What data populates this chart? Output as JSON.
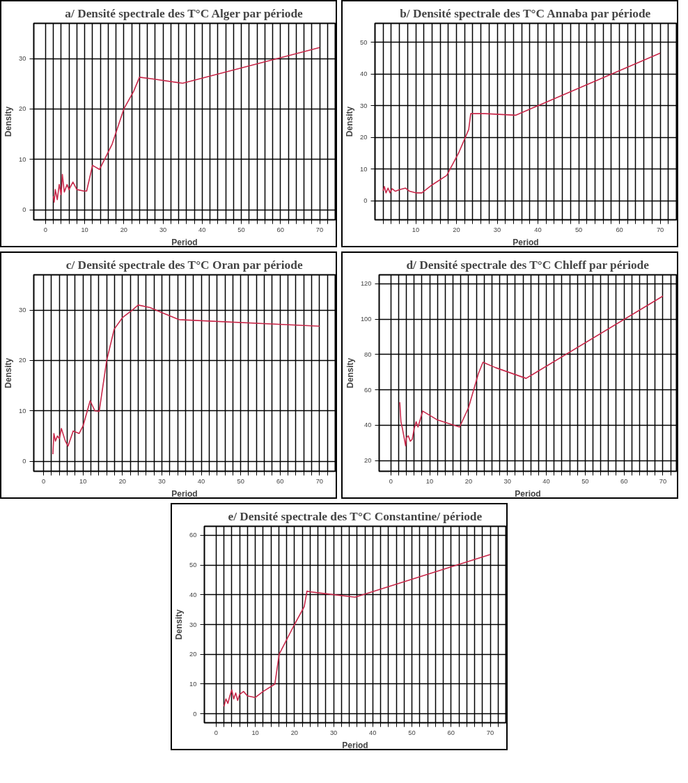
{
  "chart_data": [
    {
      "type": "line",
      "title": "a/ Densité spectrale des T°C Alger par période",
      "xlabel": "Period",
      "ylabel": "Density",
      "color": "#c8284a",
      "grid": true,
      "xlim": [
        -3,
        74
      ],
      "ylim": [
        -2,
        37
      ],
      "xticks": [
        0,
        {
          "value": 2,
          "label": null
        },
        {
          "value": 4,
          "label": null
        },
        {
          "value": 6,
          "label": null
        },
        {
          "value": 8,
          "label": null
        },
        10,
        {
          "value": 12,
          "label": null
        },
        {
          "value": 14,
          "label": null
        },
        {
          "value": 16,
          "label": null
        },
        {
          "value": 18,
          "label": null
        },
        20,
        {
          "value": 22,
          "label": null
        },
        {
          "value": 24,
          "label": null
        },
        {
          "value": 26,
          "label": null
        },
        {
          "value": 28,
          "label": null
        },
        30,
        {
          "value": 32,
          "label": null
        },
        {
          "value": 34,
          "label": null
        },
        {
          "value": 36,
          "label": null
        },
        {
          "value": 38,
          "label": null
        },
        40,
        {
          "value": 42,
          "label": null
        },
        {
          "value": 44,
          "label": null
        },
        {
          "value": 46,
          "label": null
        },
        {
          "value": 48,
          "label": null
        },
        50,
        {
          "value": 52,
          "label": null
        },
        {
          "value": 54,
          "label": null
        },
        {
          "value": 56,
          "label": null
        },
        {
          "value": 58,
          "label": null
        },
        60,
        {
          "value": 62,
          "label": null
        },
        {
          "value": 64,
          "label": null
        },
        {
          "value": 66,
          "label": null
        },
        {
          "value": 68,
          "label": null
        },
        70,
        {
          "value": 72,
          "label": null
        }
      ],
      "yticks": [
        0,
        10,
        20,
        30
      ],
      "x": [
        2.0,
        2.2,
        2.5,
        3.0,
        3.5,
        4.0,
        4.3,
        4.8,
        5.5,
        6.0,
        7.0,
        8.0,
        9.8,
        10.5,
        12.0,
        13.8,
        17.0,
        20.0,
        22.5,
        24.0,
        27.0,
        35.0,
        70.0
      ],
      "values": [
        2.7,
        1.5,
        4.0,
        2.0,
        5.0,
        3.0,
        7.0,
        3.5,
        5.0,
        4.0,
        5.5,
        4.0,
        3.7,
        3.7,
        8.8,
        8.0,
        13.0,
        20.0,
        23.5,
        26.3,
        26.0,
        25.1,
        32.2
      ]
    },
    {
      "type": "line",
      "title": "b/ Densité spectrale des T°C Annaba par période",
      "xlabel": "Period",
      "ylabel": "Density",
      "color": "#c8284a",
      "grid": true,
      "xlim": [
        0,
        74
      ],
      "ylim": [
        -6,
        56
      ],
      "xticks": [
        {
          "value": 2,
          "label": null
        },
        {
          "value": 4,
          "label": null
        },
        {
          "value": 6,
          "label": null
        },
        {
          "value": 8,
          "label": null
        },
        10,
        {
          "value": 12,
          "label": null
        },
        {
          "value": 14,
          "label": null
        },
        {
          "value": 16,
          "label": null
        },
        {
          "value": 18,
          "label": null
        },
        20,
        {
          "value": 22,
          "label": null
        },
        {
          "value": 24,
          "label": null
        },
        {
          "value": 26,
          "label": null
        },
        {
          "value": 28,
          "label": null
        },
        30,
        {
          "value": 32,
          "label": null
        },
        {
          "value": 34,
          "label": null
        },
        {
          "value": 36,
          "label": null
        },
        {
          "value": 38,
          "label": null
        },
        40,
        {
          "value": 42,
          "label": null
        },
        {
          "value": 44,
          "label": null
        },
        {
          "value": 46,
          "label": null
        },
        {
          "value": 48,
          "label": null
        },
        50,
        {
          "value": 52,
          "label": null
        },
        {
          "value": 54,
          "label": null
        },
        {
          "value": 56,
          "label": null
        },
        {
          "value": 58,
          "label": null
        },
        60,
        {
          "value": 62,
          "label": null
        },
        {
          "value": 64,
          "label": null
        },
        {
          "value": 66,
          "label": null
        },
        {
          "value": 68,
          "label": null
        },
        70,
        {
          "value": 72,
          "label": null
        }
      ],
      "yticks": [
        0,
        10,
        20,
        30,
        40,
        50
      ],
      "x": [
        2.0,
        2.3,
        2.7,
        3.2,
        3.7,
        4.2,
        5.0,
        6.0,
        7.5,
        8.5,
        10.0,
        11.5,
        14.0,
        17.6,
        20.5,
        23.0,
        23.5,
        27.0,
        34.5,
        40.0,
        70.0
      ],
      "values": [
        3.2,
        4.5,
        2.5,
        4.0,
        2.5,
        3.8,
        3.0,
        3.5,
        4.0,
        3.0,
        2.5,
        2.5,
        5.0,
        8.0,
        15.0,
        22.5,
        27.5,
        27.5,
        27.0,
        30.0,
        46.6
      ]
    },
    {
      "type": "line",
      "title": "c/ Densité spectrale des T°C Oran par période",
      "xlabel": "Period",
      "ylabel": "Density",
      "color": "#c8284a",
      "grid": true,
      "xlim": [
        -2.5,
        74
      ],
      "ylim": [
        -2,
        37
      ],
      "xticks": [
        0,
        {
          "value": 2,
          "label": null
        },
        {
          "value": 4,
          "label": null
        },
        {
          "value": 6,
          "label": null
        },
        {
          "value": 8,
          "label": null
        },
        10,
        {
          "value": 12,
          "label": null
        },
        {
          "value": 14,
          "label": null
        },
        {
          "value": 16,
          "label": null
        },
        {
          "value": 18,
          "label": null
        },
        20,
        {
          "value": 22,
          "label": null
        },
        {
          "value": 24,
          "label": null
        },
        {
          "value": 26,
          "label": null
        },
        {
          "value": 28,
          "label": null
        },
        30,
        {
          "value": 32,
          "label": null
        },
        {
          "value": 34,
          "label": null
        },
        {
          "value": 36,
          "label": null
        },
        {
          "value": 38,
          "label": null
        },
        40,
        {
          "value": 42,
          "label": null
        },
        {
          "value": 44,
          "label": null
        },
        {
          "value": 46,
          "label": null
        },
        {
          "value": 48,
          "label": null
        },
        50,
        {
          "value": 52,
          "label": null
        },
        {
          "value": 54,
          "label": null
        },
        {
          "value": 56,
          "label": null
        },
        {
          "value": 58,
          "label": null
        },
        60,
        {
          "value": 62,
          "label": null
        },
        {
          "value": 64,
          "label": null
        },
        {
          "value": 66,
          "label": null
        },
        {
          "value": 68,
          "label": null
        },
        70,
        {
          "value": 72,
          "label": null
        }
      ],
      "yticks": [
        0,
        10,
        20,
        30
      ],
      "x": [
        2.35,
        2.6,
        3.0,
        3.5,
        4.0,
        4.5,
        5.5,
        6.2,
        7.5,
        9.0,
        10.0,
        11.8,
        13.0,
        14.1,
        16.0,
        17.9,
        20.0,
        22.5,
        24.0,
        27.0,
        30.0,
        34.4,
        70.0
      ],
      "values": [
        1.4,
        5.5,
        4.0,
        5.0,
        4.5,
        6.5,
        4.0,
        3.0,
        6.0,
        5.5,
        7.0,
        12.0,
        10.0,
        9.9,
        20.0,
        26.2,
        28.5,
        30.0,
        31.0,
        30.5,
        29.5,
        28.1,
        26.8
      ]
    },
    {
      "type": "line",
      "title": "d/ Densité spectrale des T°C Chleff par période",
      "xlabel": "Period",
      "ylabel": "Density",
      "color": "#c8284a",
      "grid": true,
      "xlim": [
        -3,
        73.5
      ],
      "ylim": [
        14,
        125
      ],
      "xticks": [
        0,
        {
          "value": 2,
          "label": null
        },
        {
          "value": 4,
          "label": null
        },
        {
          "value": 6,
          "label": null
        },
        {
          "value": 8,
          "label": null
        },
        10,
        {
          "value": 12,
          "label": null
        },
        {
          "value": 14,
          "label": null
        },
        {
          "value": 16,
          "label": null
        },
        {
          "value": 18,
          "label": null
        },
        20,
        {
          "value": 22,
          "label": null
        },
        {
          "value": 24,
          "label": null
        },
        {
          "value": 26,
          "label": null
        },
        {
          "value": 28,
          "label": null
        },
        30,
        {
          "value": 32,
          "label": null
        },
        {
          "value": 34,
          "label": null
        },
        {
          "value": 36,
          "label": null
        },
        {
          "value": 38,
          "label": null
        },
        40,
        {
          "value": 42,
          "label": null
        },
        {
          "value": 44,
          "label": null
        },
        {
          "value": 46,
          "label": null
        },
        {
          "value": 48,
          "label": null
        },
        50,
        {
          "value": 52,
          "label": null
        },
        {
          "value": 54,
          "label": null
        },
        {
          "value": 56,
          "label": null
        },
        {
          "value": 58,
          "label": null
        },
        60,
        {
          "value": 62,
          "label": null
        },
        {
          "value": 64,
          "label": null
        },
        {
          "value": 66,
          "label": null
        },
        {
          "value": 68,
          "label": null
        },
        70,
        {
          "value": 72,
          "label": null
        }
      ],
      "yticks": [
        20,
        40,
        60,
        80,
        100,
        120
      ],
      "x": [
        2.3,
        2.6,
        3.0,
        3.8,
        4.0,
        4.5,
        5.0,
        5.5,
        6.0,
        6.5,
        7.0,
        8.2,
        12.0,
        17.7,
        20.0,
        22.5,
        23.7,
        27.0,
        34.8,
        70.0
      ],
      "values": [
        53,
        42,
        38,
        28.4,
        33,
        34,
        31,
        32,
        38,
        42,
        39,
        48,
        43,
        39,
        50,
        69,
        75.6,
        72.5,
        66.5,
        113
      ]
    },
    {
      "type": "line",
      "title": "e/ Densité spectrale des T°C Constantine/ période",
      "xlabel": "Period",
      "ylabel": "Density",
      "color": "#c8284a",
      "grid": true,
      "xlim": [
        -3,
        74
      ],
      "ylim": [
        -3,
        63
      ],
      "xticks": [
        0,
        {
          "value": 2,
          "label": null
        },
        {
          "value": 4,
          "label": null
        },
        {
          "value": 6,
          "label": null
        },
        {
          "value": 8,
          "label": null
        },
        10,
        {
          "value": 12,
          "label": null
        },
        {
          "value": 14,
          "label": null
        },
        {
          "value": 16,
          "label": null
        },
        {
          "value": 18,
          "label": null
        },
        20,
        {
          "value": 22,
          "label": null
        },
        {
          "value": 24,
          "label": null
        },
        {
          "value": 26,
          "label": null
        },
        {
          "value": 28,
          "label": null
        },
        30,
        {
          "value": 32,
          "label": null
        },
        {
          "value": 34,
          "label": null
        },
        {
          "value": 36,
          "label": null
        },
        {
          "value": 38,
          "label": null
        },
        40,
        {
          "value": 42,
          "label": null
        },
        {
          "value": 44,
          "label": null
        },
        {
          "value": 46,
          "label": null
        },
        {
          "value": 48,
          "label": null
        },
        50,
        {
          "value": 52,
          "label": null
        },
        {
          "value": 54,
          "label": null
        },
        {
          "value": 56,
          "label": null
        },
        {
          "value": 58,
          "label": null
        },
        60,
        {
          "value": 62,
          "label": null
        },
        {
          "value": 64,
          "label": null
        },
        {
          "value": 66,
          "label": null
        },
        {
          "value": 68,
          "label": null
        },
        70,
        {
          "value": 72,
          "label": null
        }
      ],
      "yticks": [
        0,
        10,
        20,
        30,
        40,
        50,
        60
      ],
      "x": [
        2.0,
        2.5,
        3.0,
        3.5,
        4.0,
        4.5,
        5.0,
        5.5,
        6.0,
        7.0,
        8.0,
        10.0,
        12.0,
        15.0,
        16.1,
        20.0,
        22.5,
        23.2,
        24.0,
        27.0,
        35.5,
        70.0
      ],
      "values": [
        2.5,
        5.0,
        3.5,
        6.0,
        8.0,
        5.0,
        7.0,
        4.5,
        6.5,
        7.5,
        6.0,
        5.5,
        7.5,
        10.0,
        20.0,
        30.0,
        36.0,
        41.2,
        41.0,
        40.5,
        39.2,
        53.5
      ]
    }
  ]
}
